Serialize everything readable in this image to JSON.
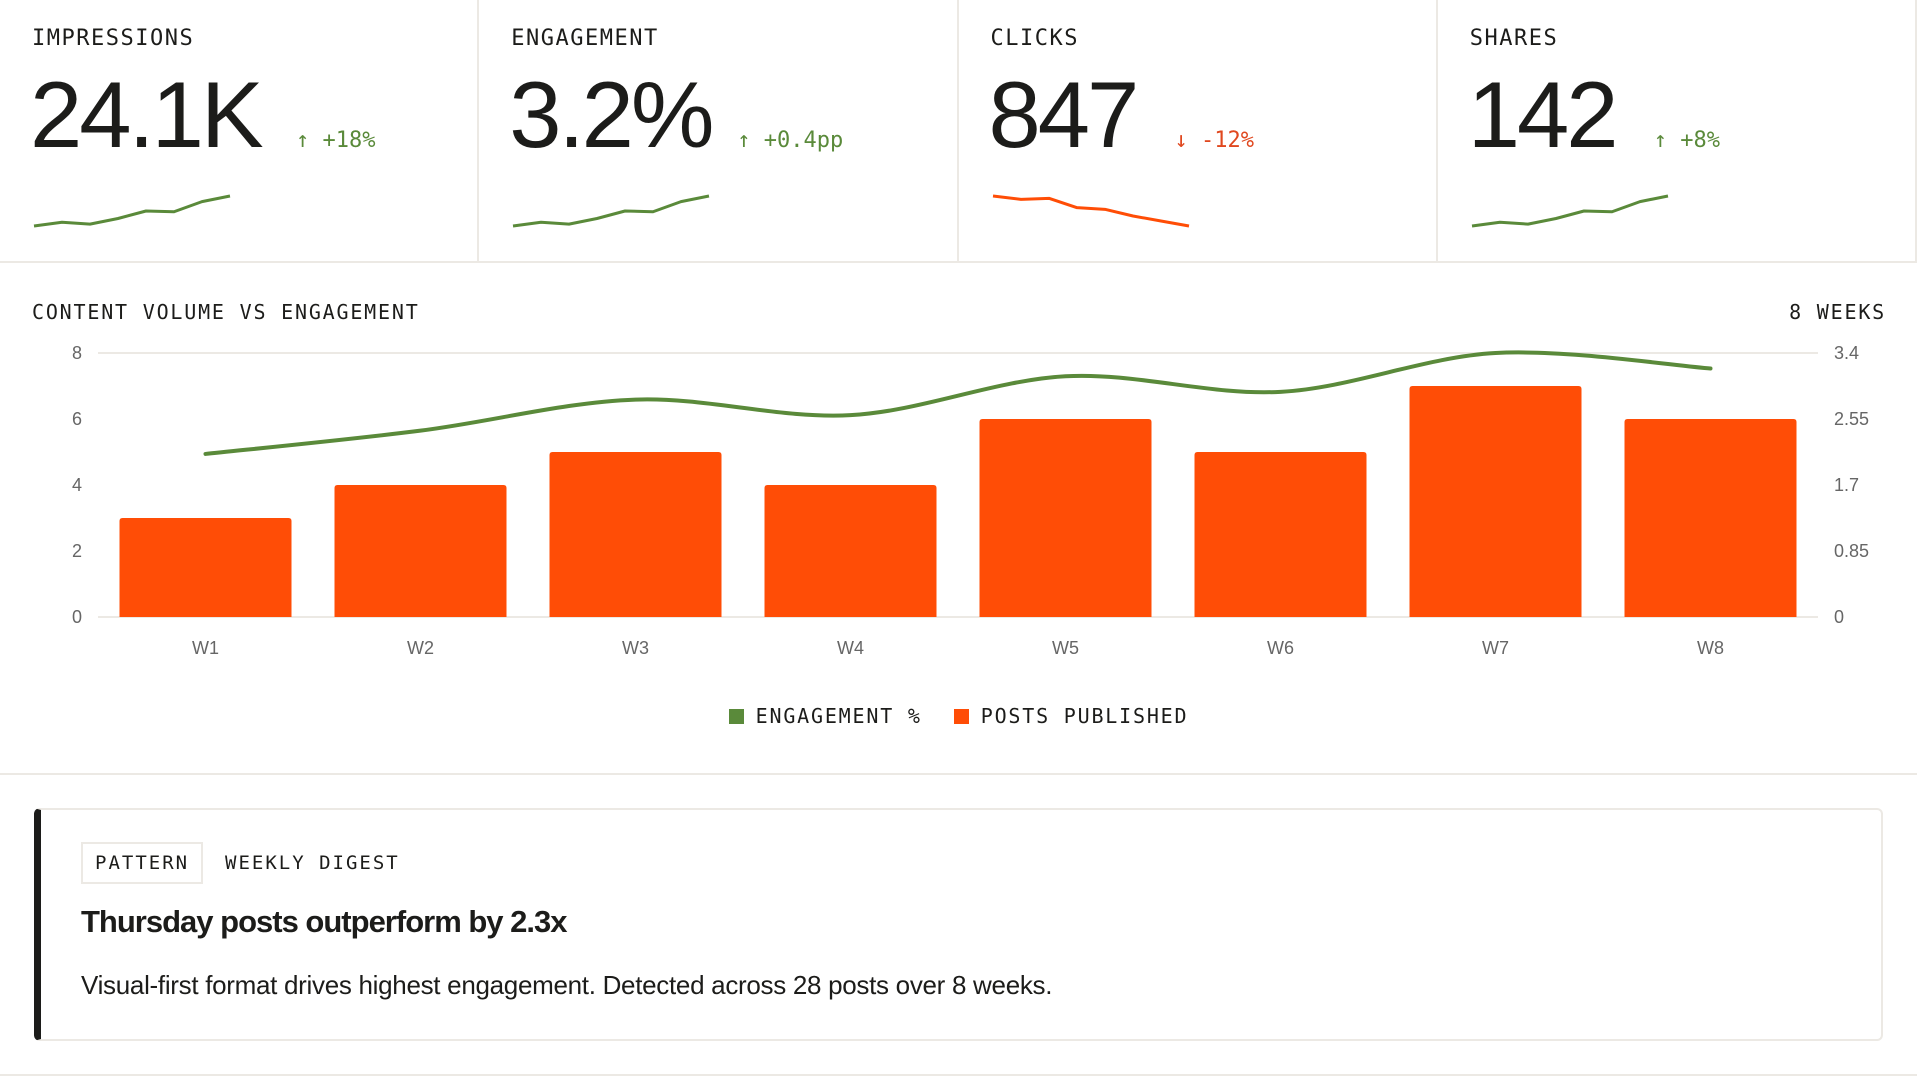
{
  "colors": {
    "accent": "#ff4d06",
    "positive": "#5a8a3a",
    "negative": "#e0481f",
    "border": "#ece9e4",
    "text": "#1c1c1a"
  },
  "kpis": [
    {
      "label": "IMPRESSIONS",
      "value": "24.1K",
      "delta": "+18%",
      "direction": "up",
      "arrow": "↑",
      "sparkline": [
        2,
        3,
        2.5,
        4,
        6,
        5.8,
        8.5,
        10
      ]
    },
    {
      "label": "ENGAGEMENT",
      "value": "3.2%",
      "delta": "+0.4pp",
      "direction": "up",
      "arrow": "↑",
      "sparkline": [
        2,
        3,
        2.5,
        4,
        6,
        5.8,
        8.5,
        10
      ]
    },
    {
      "label": "CLICKS",
      "value": "847",
      "delta": "-12%",
      "direction": "down",
      "arrow": "↓",
      "sparkline": [
        10,
        9,
        9.3,
        6.5,
        6,
        4,
        2.5,
        1
      ]
    },
    {
      "label": "SHARES",
      "value": "142",
      "delta": "+8%",
      "direction": "up",
      "arrow": "↑",
      "sparkline": [
        2,
        3,
        2.5,
        4,
        6,
        5.8,
        8.5,
        10
      ]
    }
  ],
  "chart_section": {
    "title": "CONTENT VOLUME VS ENGAGEMENT",
    "range": "8 WEEKS"
  },
  "chart_data": {
    "type": "bar+line",
    "categories": [
      "W1",
      "W2",
      "W3",
      "W4",
      "W5",
      "W6",
      "W7",
      "W8"
    ],
    "series": [
      {
        "name": "POSTS PUBLISHED",
        "type": "bar",
        "axis": "left",
        "color": "#ff4d06",
        "values": [
          3,
          4,
          5,
          4,
          6,
          5,
          7,
          6
        ]
      },
      {
        "name": "ENGAGEMENT %",
        "type": "line",
        "axis": "right",
        "color": "#5a8a3a",
        "values": [
          2.1,
          2.4,
          2.8,
          2.6,
          3.1,
          2.9,
          3.4,
          3.2
        ]
      }
    ],
    "left_axis": {
      "ticks": [
        "0",
        "2",
        "4",
        "6",
        "8"
      ],
      "ylim": [
        0,
        8
      ]
    },
    "right_axis": {
      "ticks": [
        "0",
        "0.85",
        "1.7",
        "2.55",
        "3.4"
      ],
      "ylim": [
        0,
        3.4
      ]
    },
    "grid": "horizontal top and baseline",
    "legend": "bottom-center",
    "legend_items": [
      "ENGAGEMENT %",
      "POSTS PUBLISHED"
    ]
  },
  "insight": {
    "tag": "PATTERN",
    "category": "WEEKLY DIGEST",
    "title": "Thursday posts outperform by 2.3x",
    "body": "Visual-first format drives highest engagement. Detected across 28 posts over 8 weeks."
  }
}
